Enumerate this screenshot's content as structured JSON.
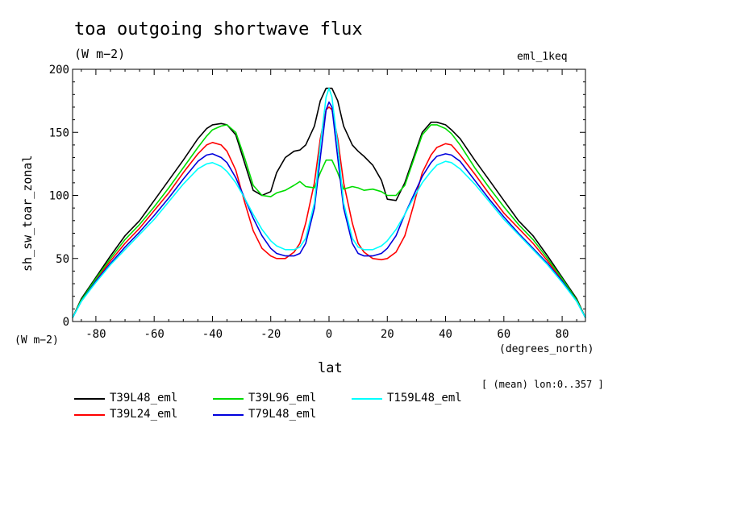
{
  "title": "toa outgoing shortwave flux",
  "units": "(W m−2)",
  "experiment": "eml_1keq",
  "y_axis_units": "(W m−2)",
  "x_axis_units": "(degrees_north)",
  "x_axis_label": "lat",
  "y_axis_label": "sh_sw_toar_zonal",
  "note": "[ (mean) lon:0..357 ]",
  "chart_data": {
    "type": "line",
    "title": "toa outgoing shortwave flux",
    "xlabel": "lat",
    "ylabel": "sh_sw_toar_zonal",
    "xlim": [
      -88,
      88
    ],
    "ylim": [
      0,
      200
    ],
    "xticks": [
      -80,
      -60,
      -40,
      -20,
      0,
      20,
      40,
      60,
      80
    ],
    "yticks": [
      0,
      50,
      100,
      150,
      200
    ],
    "grid": false,
    "legend": "bottom",
    "series": [
      {
        "name": "T39L48_eml",
        "color": "#000000",
        "x": [
          -88,
          -85,
          -80,
          -75,
          -70,
          -65,
          -60,
          -55,
          -50,
          -45,
          -42,
          -40,
          -37,
          -35,
          -32,
          -29,
          -26,
          -23,
          -20,
          -18,
          -15,
          -12,
          -10,
          -8,
          -5,
          -3,
          -1,
          0,
          1,
          3,
          5,
          8,
          10,
          12,
          15,
          18,
          20,
          23,
          26,
          29,
          32,
          35,
          37,
          40,
          42,
          45,
          50,
          55,
          60,
          65,
          70,
          75,
          80,
          85,
          88
        ],
        "y": [
          3,
          18,
          35,
          52,
          68,
          80,
          96,
          112,
          128,
          145,
          153,
          156,
          157,
          156,
          148,
          126,
          104,
          100,
          103,
          118,
          130,
          135,
          136,
          140,
          155,
          175,
          185,
          185,
          185,
          175,
          155,
          140,
          135,
          131,
          124,
          112,
          97,
          96,
          110,
          130,
          150,
          158,
          158,
          156,
          152,
          145,
          128,
          112,
          96,
          80,
          68,
          52,
          35,
          18,
          3
        ]
      },
      {
        "name": "T39L24_eml",
        "color": "#ff0000",
        "x": [
          -88,
          -85,
          -80,
          -75,
          -70,
          -65,
          -60,
          -55,
          -50,
          -45,
          -42,
          -40,
          -37,
          -35,
          -32,
          -29,
          -26,
          -23,
          -20,
          -18,
          -15,
          -12,
          -10,
          -8,
          -5,
          -3,
          -1,
          0,
          1,
          3,
          5,
          8,
          10,
          12,
          15,
          18,
          20,
          23,
          26,
          29,
          32,
          35,
          37,
          40,
          42,
          45,
          50,
          55,
          60,
          65,
          70,
          75,
          80,
          85,
          88
        ],
        "y": [
          3,
          17,
          33,
          48,
          62,
          74,
          88,
          102,
          118,
          133,
          140,
          142,
          140,
          135,
          120,
          95,
          72,
          58,
          52,
          50,
          50,
          55,
          62,
          78,
          110,
          145,
          168,
          170,
          168,
          145,
          110,
          78,
          62,
          55,
          50,
          49,
          50,
          55,
          68,
          92,
          118,
          132,
          138,
          141,
          140,
          132,
          117,
          101,
          86,
          74,
          62,
          48,
          33,
          17,
          3
        ]
      },
      {
        "name": "T39L96_eml",
        "color": "#00dd00",
        "x": [
          -88,
          -85,
          -80,
          -75,
          -70,
          -65,
          -60,
          -55,
          -50,
          -45,
          -42,
          -40,
          -37,
          -35,
          -32,
          -29,
          -26,
          -23,
          -20,
          -18,
          -15,
          -12,
          -10,
          -8,
          -5,
          -3,
          -1,
          0,
          1,
          3,
          5,
          8,
          10,
          12,
          15,
          18,
          20,
          23,
          26,
          29,
          32,
          35,
          37,
          40,
          42,
          45,
          50,
          55,
          60,
          65,
          70,
          75,
          80,
          85,
          88
        ],
        "y": [
          3,
          17,
          34,
          50,
          65,
          77,
          91,
          106,
          122,
          138,
          147,
          152,
          155,
          156,
          150,
          130,
          108,
          100,
          99,
          102,
          104,
          108,
          111,
          107,
          106,
          118,
          128,
          128,
          128,
          118,
          105,
          107,
          106,
          104,
          105,
          103,
          100,
          100,
          108,
          128,
          148,
          156,
          156,
          153,
          149,
          140,
          122,
          106,
          91,
          77,
          65,
          50,
          34,
          17,
          3
        ]
      },
      {
        "name": "T79L48_eml",
        "color": "#0000dd",
        "x": [
          -88,
          -85,
          -80,
          -75,
          -70,
          -65,
          -60,
          -55,
          -50,
          -45,
          -42,
          -40,
          -37,
          -35,
          -32,
          -29,
          -26,
          -23,
          -20,
          -18,
          -15,
          -12,
          -10,
          -8,
          -5,
          -3,
          -1,
          0,
          1,
          3,
          5,
          8,
          10,
          12,
          15,
          18,
          20,
          23,
          26,
          29,
          32,
          35,
          37,
          40,
          42,
          45,
          50,
          55,
          60,
          65,
          70,
          75,
          80,
          85,
          88
        ],
        "y": [
          3,
          16,
          32,
          46,
          59,
          71,
          84,
          98,
          113,
          127,
          132,
          133,
          130,
          126,
          114,
          98,
          82,
          68,
          58,
          54,
          52,
          52,
          54,
          62,
          90,
          130,
          168,
          174,
          170,
          130,
          90,
          62,
          54,
          52,
          52,
          54,
          58,
          68,
          85,
          100,
          115,
          126,
          131,
          133,
          132,
          127,
          112,
          97,
          83,
          70,
          58,
          46,
          32,
          16,
          3
        ]
      },
      {
        "name": "T159L48_eml",
        "color": "#00ffff",
        "x": [
          -88,
          -85,
          -80,
          -75,
          -70,
          -65,
          -60,
          -55,
          -50,
          -45,
          -42,
          -40,
          -37,
          -35,
          -32,
          -29,
          -26,
          -23,
          -20,
          -18,
          -15,
          -12,
          -10,
          -8,
          -5,
          -3,
          -1,
          0,
          1,
          3,
          5,
          8,
          10,
          12,
          15,
          18,
          20,
          23,
          26,
          29,
          32,
          35,
          37,
          40,
          42,
          45,
          50,
          55,
          60,
          65,
          70,
          75,
          80,
          85,
          88
        ],
        "y": [
          3,
          16,
          31,
          45,
          57,
          69,
          81,
          95,
          109,
          121,
          125,
          126,
          123,
          119,
          110,
          98,
          85,
          73,
          64,
          60,
          57,
          57,
          59,
          66,
          94,
          140,
          178,
          185,
          178,
          140,
          94,
          66,
          59,
          57,
          57,
          60,
          64,
          73,
          85,
          98,
          110,
          119,
          124,
          127,
          126,
          121,
          109,
          95,
          81,
          69,
          57,
          45,
          31,
          16,
          3
        ]
      }
    ]
  }
}
